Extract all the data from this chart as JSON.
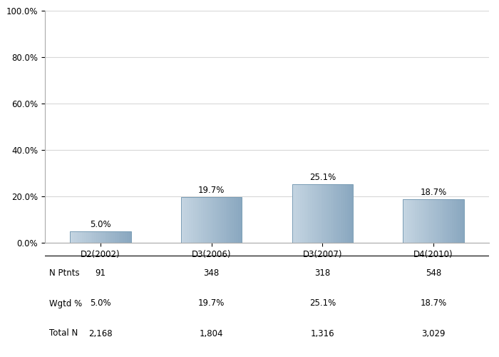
{
  "categories": [
    "D2(2002)",
    "D3(2006)",
    "D3(2007)",
    "D4(2010)"
  ],
  "values": [
    5.0,
    19.7,
    25.1,
    18.7
  ],
  "labels": [
    "5.0%",
    "19.7%",
    "25.1%",
    "18.7%"
  ],
  "n_ptnts": [
    "91",
    "348",
    "318",
    "548"
  ],
  "wgtd_pct": [
    "5.0%",
    "19.7%",
    "25.1%",
    "18.7%"
  ],
  "total_n": [
    "2,168",
    "1,804",
    "1,316",
    "3,029"
  ],
  "ylim": [
    0,
    100
  ],
  "yticks": [
    0,
    20,
    40,
    60,
    80,
    100
  ],
  "ytick_labels": [
    "0.0%",
    "20.0%",
    "40.0%",
    "60.0%",
    "80.0%",
    "100.0%"
  ],
  "background_color": "#ffffff",
  "grid_color": "#d8d8d8",
  "table_row_labels": [
    "N Ptnts",
    "Wgtd %",
    "Total N"
  ],
  "value_fontsize": 8.5,
  "tick_fontsize": 8.5,
  "table_fontsize": 8.5,
  "bar_width": 0.55
}
